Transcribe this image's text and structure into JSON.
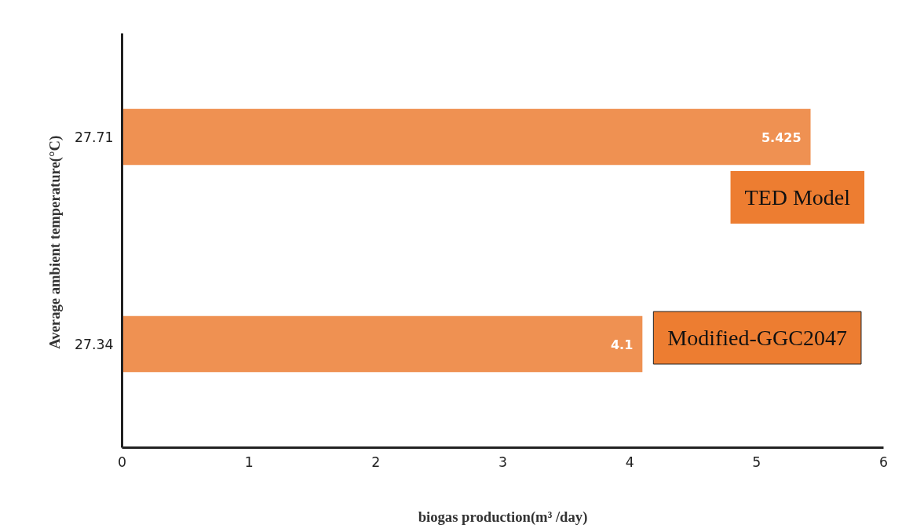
{
  "chart_data": {
    "type": "bar",
    "orientation": "horizontal",
    "categories": [
      "27.71",
      "27.34"
    ],
    "values": [
      5.425,
      4.1
    ],
    "color": "#ef9152",
    "data_labels": true,
    "xlim": [
      0,
      6
    ],
    "xticks": [
      0,
      1,
      2,
      3,
      4,
      5,
      6
    ],
    "grid": false,
    "xlabel": "biogas production(m³ /day)",
    "ylabel": "Average  ambient temperature(°C)",
    "annotations": [
      {
        "text": "TED Model",
        "x": 5.425,
        "y": "27.71"
      },
      {
        "text": "Modified-GGC2047",
        "x": 4.1,
        "y": "27.34"
      }
    ]
  }
}
